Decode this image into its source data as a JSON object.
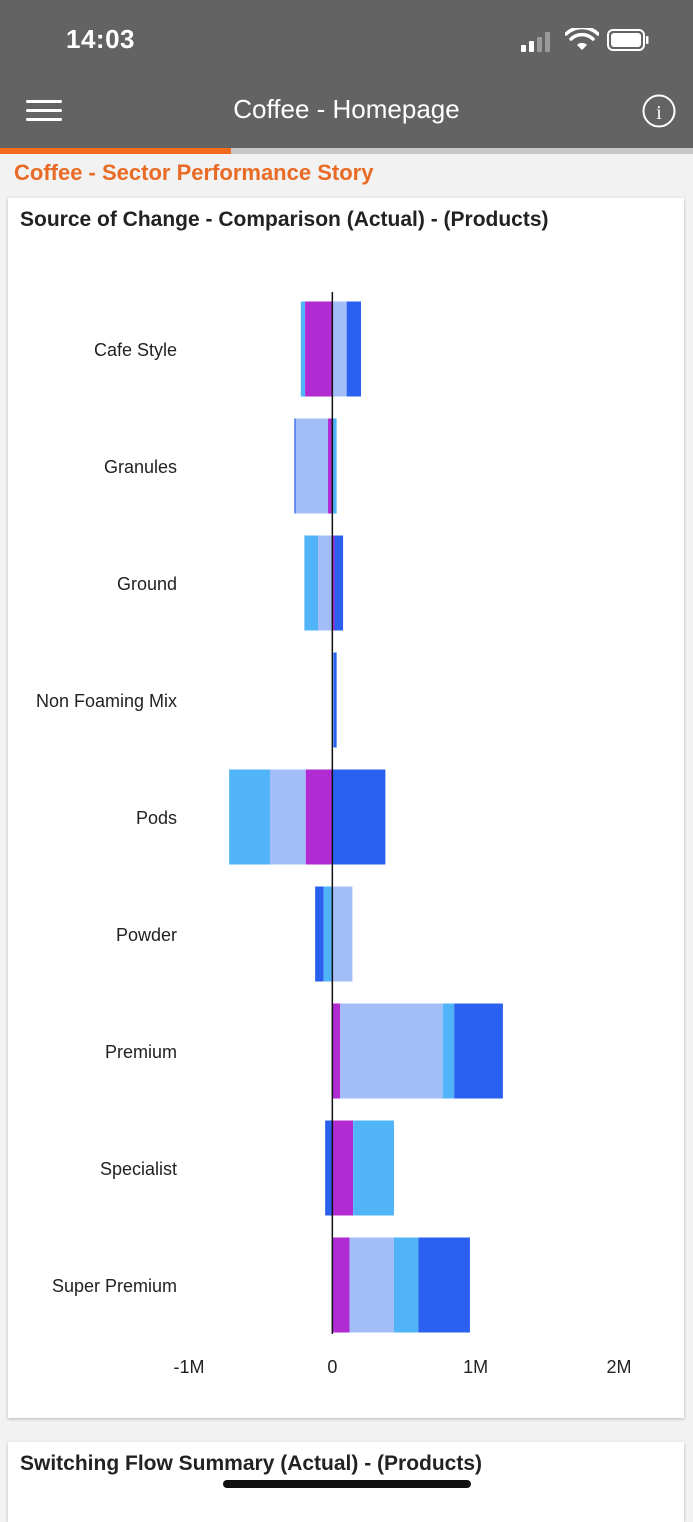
{
  "status_bar": {
    "time": "14:03"
  },
  "header": {
    "title": "Coffee - Homepage"
  },
  "progress": {
    "fraction": 0.333
  },
  "story": {
    "title": "Coffee - Sector Performance Story"
  },
  "card1": {
    "title": "Source of Change - Comparison (Actual) - (Products)"
  },
  "card2": {
    "title": "Switching Flow Summary (Actual) - (Products)"
  },
  "colors": {
    "magenta": "#b02bd2",
    "light_periwinkle": "#a3bdf8",
    "sky_blue": "#52b4f8",
    "royal_blue": "#2a60f0"
  },
  "chart_data": {
    "type": "bar",
    "orientation": "horizontal",
    "stacked": true,
    "categories": [
      "Cafe Style",
      "Granules",
      "Ground",
      "Non Foaming Mix",
      "Pods",
      "Powder",
      "Premium",
      "Specialist",
      "Super Premium"
    ],
    "xlim": [
      -1000000,
      2000000
    ],
    "x_ticks": [
      {
        "value": -1000000,
        "label": "-1M"
      },
      {
        "value": 0,
        "label": "0"
      },
      {
        "value": 1000000,
        "label": "1M"
      },
      {
        "value": 2000000,
        "label": "2M"
      }
    ],
    "rows": [
      {
        "category": "Cafe Style",
        "segments": [
          {
            "from": -220000,
            "to": -190000,
            "color": "sky_blue"
          },
          {
            "from": -190000,
            "to": 0,
            "color": "magenta"
          },
          {
            "from": 0,
            "to": 100000,
            "color": "light_periwinkle"
          },
          {
            "from": 100000,
            "to": 200000,
            "color": "royal_blue"
          }
        ]
      },
      {
        "category": "Granules",
        "segments": [
          {
            "from": -265000,
            "to": -255000,
            "color": "royal_blue"
          },
          {
            "from": -255000,
            "to": -30000,
            "color": "light_periwinkle"
          },
          {
            "from": -30000,
            "to": 0,
            "color": "magenta"
          },
          {
            "from": 0,
            "to": 30000,
            "color": "sky_blue"
          }
        ]
      },
      {
        "category": "Ground",
        "segments": [
          {
            "from": -195000,
            "to": -100000,
            "color": "sky_blue"
          },
          {
            "from": -100000,
            "to": 0,
            "color": "light_periwinkle"
          },
          {
            "from": 0,
            "to": 15000,
            "color": "magenta"
          },
          {
            "from": 15000,
            "to": 75000,
            "color": "royal_blue"
          }
        ]
      },
      {
        "category": "Non Foaming Mix",
        "segments": [
          {
            "from": 0,
            "to": 10000,
            "color": "sky_blue"
          },
          {
            "from": 10000,
            "to": 30000,
            "color": "royal_blue"
          }
        ]
      },
      {
        "category": "Pods",
        "segments": [
          {
            "from": -720000,
            "to": -435000,
            "color": "sky_blue"
          },
          {
            "from": -435000,
            "to": -185000,
            "color": "light_periwinkle"
          },
          {
            "from": -185000,
            "to": 0,
            "color": "magenta"
          },
          {
            "from": 0,
            "to": 370000,
            "color": "royal_blue"
          }
        ]
      },
      {
        "category": "Powder",
        "segments": [
          {
            "from": -120000,
            "to": -60000,
            "color": "royal_blue"
          },
          {
            "from": -60000,
            "to": 0,
            "color": "sky_blue"
          },
          {
            "from": 0,
            "to": 140000,
            "color": "light_periwinkle"
          }
        ]
      },
      {
        "category": "Premium",
        "segments": [
          {
            "from": 0,
            "to": 55000,
            "color": "magenta"
          },
          {
            "from": 55000,
            "to": 770000,
            "color": "light_periwinkle"
          },
          {
            "from": 770000,
            "to": 850000,
            "color": "sky_blue"
          },
          {
            "from": 850000,
            "to": 1190000,
            "color": "royal_blue"
          }
        ]
      },
      {
        "category": "Specialist",
        "segments": [
          {
            "from": -50000,
            "to": 0,
            "color": "royal_blue"
          },
          {
            "from": 0,
            "to": 145000,
            "color": "magenta"
          },
          {
            "from": 145000,
            "to": 430000,
            "color": "sky_blue"
          }
        ]
      },
      {
        "category": "Super Premium",
        "segments": [
          {
            "from": 0,
            "to": 120000,
            "color": "magenta"
          },
          {
            "from": 120000,
            "to": 430000,
            "color": "light_periwinkle"
          },
          {
            "from": 430000,
            "to": 600000,
            "color": "sky_blue"
          },
          {
            "from": 600000,
            "to": 960000,
            "color": "royal_blue"
          }
        ]
      }
    ]
  }
}
